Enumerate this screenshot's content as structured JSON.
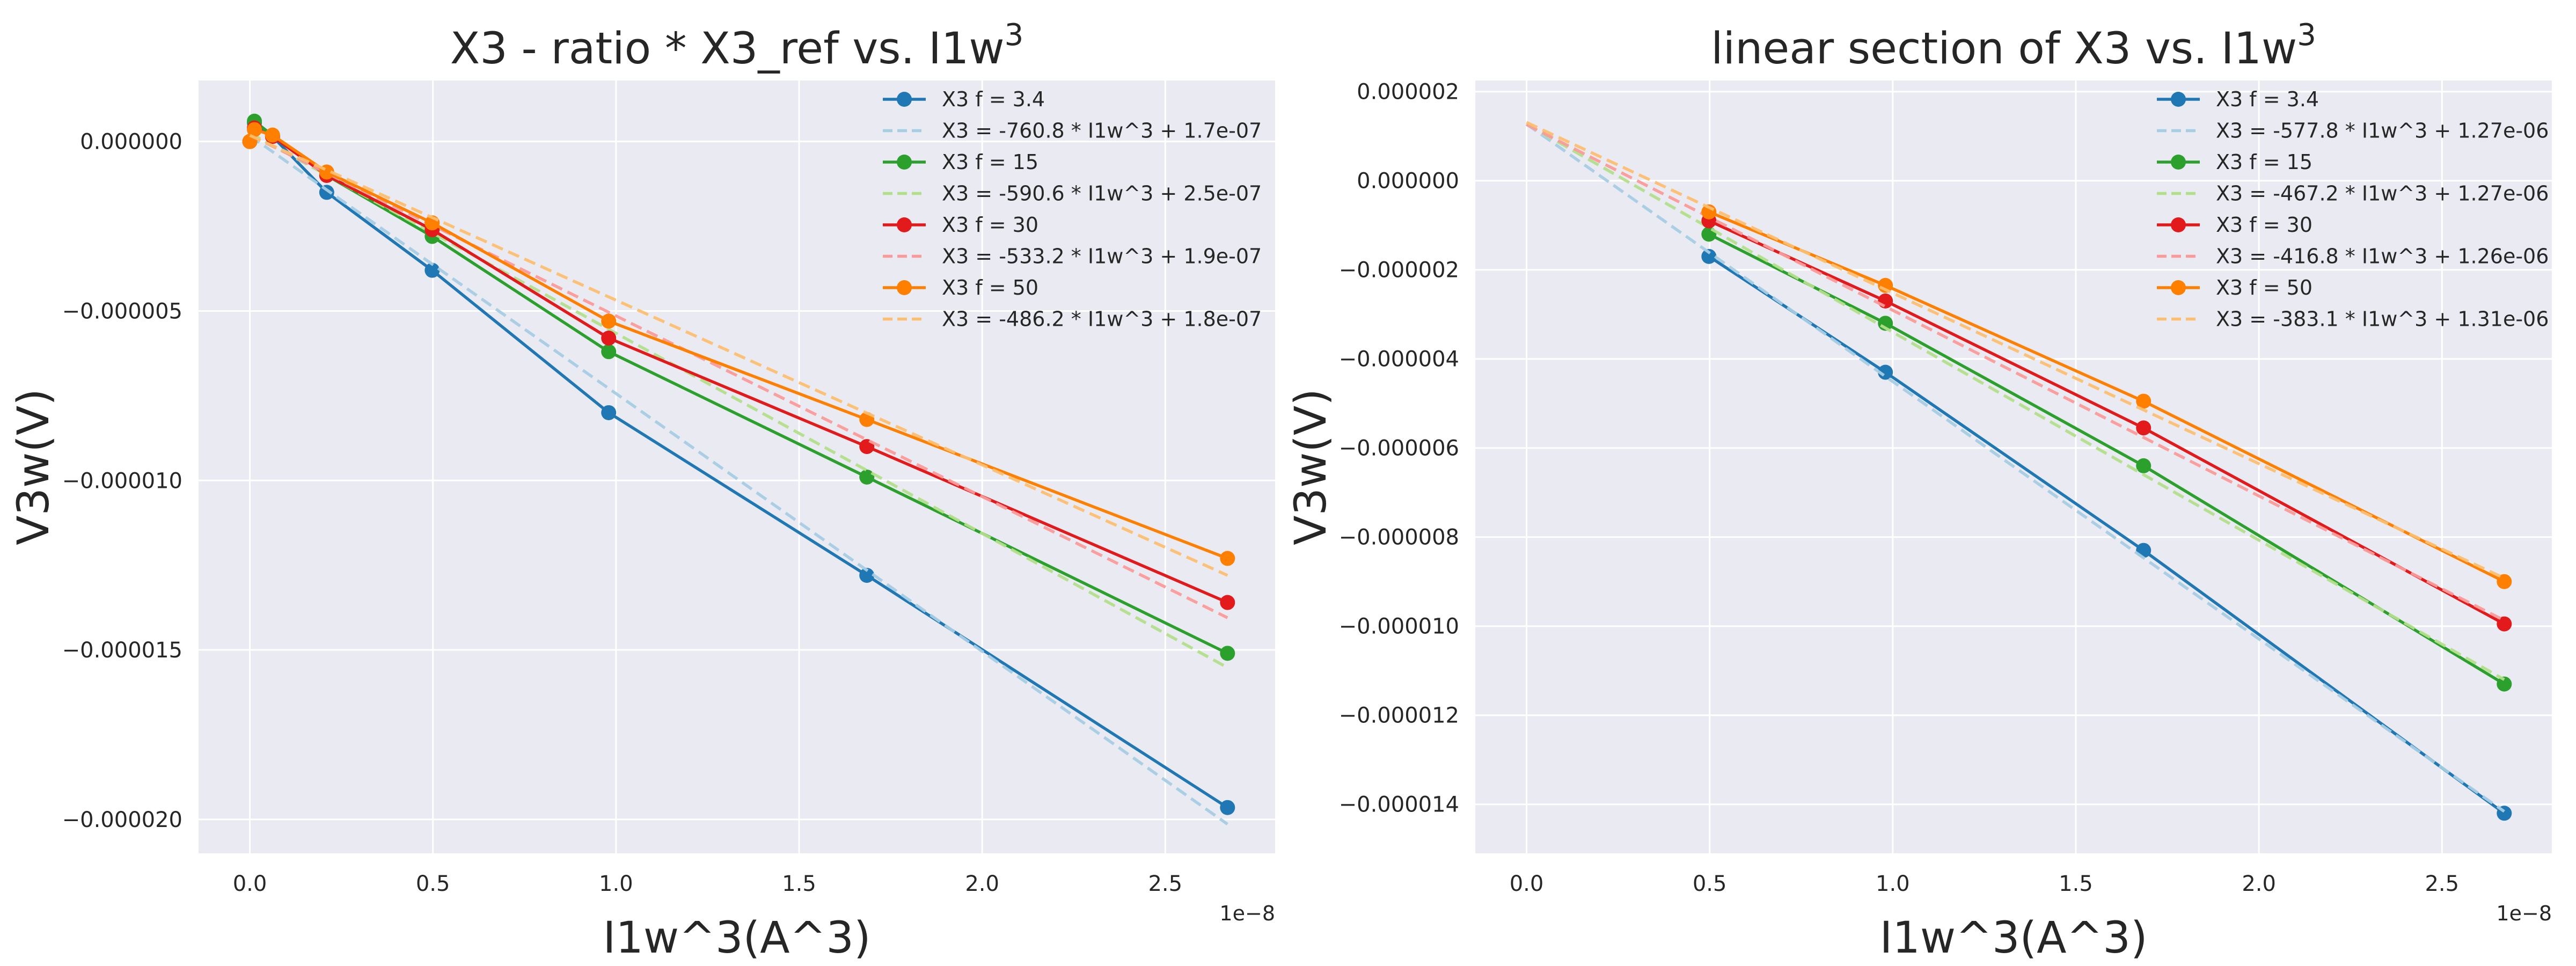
{
  "chart_data": [
    {
      "type": "line",
      "title": "X3 - ratio * X3_ref vs. I1w^3",
      "title_base": "X3 - ratio * X3_ref vs. I1w",
      "title_sup": "3",
      "xlabel": "I1w^3(A^3)",
      "ylabel": "V3w(V)",
      "x_offset_label": "1e−8",
      "xlim": [
        -1.4e-09,
        2.8e-08
      ],
      "ylim": [
        -2.1e-05,
        1.8e-06
      ],
      "x_ticks": [
        0,
        5e-09,
        1e-08,
        1.5e-08,
        2e-08,
        2.5e-08
      ],
      "x_tick_labels": [
        "0.0",
        "0.5",
        "1.0",
        "1.5",
        "2.0",
        "2.5"
      ],
      "y_ticks": [
        0,
        -5e-06,
        -1e-05,
        -1.5e-05,
        -2e-05
      ],
      "y_tick_labels": [
        "0.000000",
        "−0.000005",
        "−0.000010",
        "−0.000015",
        "−0.000020"
      ],
      "grid": true,
      "legend_position": "top-right",
      "series": [
        {
          "name": "X3 f = 3.4",
          "style": "marker-line",
          "color": "#1f77b4",
          "x": [
            0,
            1.25e-10,
            6.2e-10,
            2.1e-09,
            4.98e-09,
            9.8e-09,
            1.685e-08,
            2.67e-08
          ],
          "y": [
            0,
            5.5e-07,
            1.5e-07,
            -1.5e-06,
            -3.8e-06,
            -8e-06,
            -1.28e-05,
            -1.965e-05
          ]
        },
        {
          "name": "X3 = -760.8 * I1w^3 + 1.7e-07",
          "style": "dashed",
          "color": "#a6cee3",
          "x": [
            0,
            2.67e-08
          ],
          "y": [
            1.7e-07,
            -2.014e-05
          ]
        },
        {
          "name": "X3 f = 15",
          "style": "marker-line",
          "color": "#2ca02c",
          "x": [
            0,
            1.25e-10,
            6.2e-10,
            2.1e-09,
            4.98e-09,
            9.8e-09,
            1.685e-08,
            2.67e-08
          ],
          "y": [
            0,
            6e-07,
            1.8e-07,
            -1e-06,
            -2.8e-06,
            -6.2e-06,
            -9.9e-06,
            -1.51e-05
          ]
        },
        {
          "name": "X3 = -590.6 * I1w^3 + 2.5e-07",
          "style": "dashed",
          "color": "#b2df8a",
          "x": [
            0,
            2.67e-08
          ],
          "y": [
            2.5e-07,
            -1.552e-05
          ]
        },
        {
          "name": "X3 f = 30",
          "style": "marker-line",
          "color": "#e31a1c",
          "x": [
            0,
            1.25e-10,
            6.2e-10,
            2.1e-09,
            4.98e-09,
            9.8e-09,
            1.685e-08,
            2.67e-08
          ],
          "y": [
            0,
            4e-07,
            1.5e-07,
            -1e-06,
            -2.6e-06,
            -5.8e-06,
            -9e-06,
            -1.36e-05
          ]
        },
        {
          "name": "X3 = -533.2 * I1w^3 + 1.9e-07",
          "style": "dashed",
          "color": "#fb9a99",
          "x": [
            0,
            2.67e-08
          ],
          "y": [
            1.9e-07,
            -1.405e-05
          ]
        },
        {
          "name": "X3 f = 50",
          "style": "marker-line",
          "color": "#ff7f00",
          "x": [
            0,
            1.25e-10,
            6.2e-10,
            2.1e-09,
            4.98e-09,
            9.8e-09,
            1.685e-08,
            2.67e-08
          ],
          "y": [
            0,
            3.5e-07,
            1.9e-07,
            -9e-07,
            -2.4e-06,
            -5.3e-06,
            -8.2e-06,
            -1.23e-05
          ]
        },
        {
          "name": "X3 = -486.2 * I1w^3 + 1.8e-07",
          "style": "dashed",
          "color": "#fdbf6f",
          "x": [
            0,
            2.67e-08
          ],
          "y": [
            1.8e-07,
            -1.28e-05
          ]
        }
      ]
    },
    {
      "type": "line",
      "title": "linear section of X3 vs. I1w^3",
      "title_base": "linear section of X3 vs. I1w",
      "title_sup": "3",
      "xlabel": "I1w^3(A^3)",
      "ylabel": "V3w(V)",
      "x_offset_label": "1e−8",
      "xlim": [
        -1.4e-09,
        2.8e-08
      ],
      "ylim": [
        -1.51e-05,
        2.25e-06
      ],
      "x_ticks": [
        0,
        5e-09,
        1e-08,
        1.5e-08,
        2e-08,
        2.5e-08
      ],
      "x_tick_labels": [
        "0.0",
        "0.5",
        "1.0",
        "1.5",
        "2.0",
        "2.5"
      ],
      "y_ticks": [
        2e-06,
        0,
        -2e-06,
        -4e-06,
        -6e-06,
        -8e-06,
        -1e-05,
        -1.2e-05,
        -1.4e-05
      ],
      "y_tick_labels": [
        "0.000002",
        "0.000000",
        "−0.000002",
        "−0.000004",
        "−0.000006",
        "−0.000008",
        "−0.000010",
        "−0.000012",
        "−0.000014"
      ],
      "grid": true,
      "legend_position": "top-right",
      "series": [
        {
          "name": "X3 f = 3.4",
          "style": "marker-line",
          "color": "#1f77b4",
          "x": [
            4.98e-09,
            9.8e-09,
            1.685e-08,
            2.67e-08
          ],
          "y": [
            -1.7e-06,
            -4.3e-06,
            -8.3e-06,
            -1.42e-05
          ]
        },
        {
          "name": "X3 = -577.8 * I1w^3 + 1.27e-06",
          "style": "dashed",
          "color": "#a6cee3",
          "x": [
            0,
            2.67e-08
          ],
          "y": [
            1.27e-06,
            -1.416e-05
          ]
        },
        {
          "name": "X3 f = 15",
          "style": "marker-line",
          "color": "#2ca02c",
          "x": [
            4.98e-09,
            9.8e-09,
            1.685e-08,
            2.67e-08
          ],
          "y": [
            -1.2e-06,
            -3.2e-06,
            -6.4e-06,
            -1.13e-05
          ]
        },
        {
          "name": "X3 = -467.2 * I1w^3 + 1.27e-06",
          "style": "dashed",
          "color": "#b2df8a",
          "x": [
            0,
            2.67e-08
          ],
          "y": [
            1.27e-06,
            -1.12e-05
          ]
        },
        {
          "name": "X3 f = 30",
          "style": "marker-line",
          "color": "#e31a1c",
          "x": [
            4.98e-09,
            9.8e-09,
            1.685e-08,
            2.67e-08
          ],
          "y": [
            -9e-07,
            -2.7e-06,
            -5.55e-06,
            -9.95e-06
          ]
        },
        {
          "name": "X3 = -416.8 * I1w^3 + 1.26e-06",
          "style": "dashed",
          "color": "#fb9a99",
          "x": [
            0,
            2.67e-08
          ],
          "y": [
            1.26e-06,
            -9.87e-06
          ]
        },
        {
          "name": "X3 f = 50",
          "style": "marker-line",
          "color": "#ff7f00",
          "x": [
            4.98e-09,
            9.8e-09,
            1.685e-08,
            2.67e-08
          ],
          "y": [
            -7e-07,
            -2.35e-06,
            -4.95e-06,
            -9e-06
          ]
        },
        {
          "name": "X3 = -383.1 * I1w^3 + 1.31e-06",
          "style": "dashed",
          "color": "#fdbf6f",
          "x": [
            0,
            2.67e-08
          ],
          "y": [
            1.31e-06,
            -8.92e-06
          ]
        }
      ]
    }
  ],
  "style": {
    "plot_background": "#eaeaf2",
    "grid_color": "#ffffff",
    "text_color": "#262626"
  }
}
